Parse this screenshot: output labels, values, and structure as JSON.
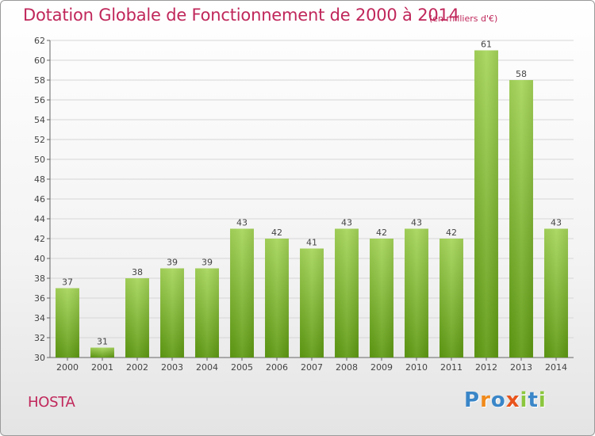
{
  "chart_data": {
    "type": "bar",
    "title": "Dotation Globale de Fonctionnement de 2000 à 2014",
    "unit_label": "(en milliers d'€)",
    "categories": [
      "2000",
      "2001",
      "2002",
      "2003",
      "2004",
      "2005",
      "2006",
      "2007",
      "2008",
      "2009",
      "2010",
      "2011",
      "2012",
      "2013",
      "2014"
    ],
    "values": [
      37,
      31,
      38,
      39,
      39,
      43,
      42,
      41,
      43,
      42,
      43,
      42,
      61,
      58,
      43
    ],
    "ylim": [
      30,
      62
    ],
    "yticks": [
      30,
      32,
      34,
      36,
      38,
      40,
      42,
      44,
      46,
      48,
      50,
      52,
      54,
      56,
      58,
      60,
      62
    ],
    "xlabel": "",
    "ylabel": "",
    "grid": true,
    "colors": {
      "bar_light": "#a6d65a",
      "bar_dark": "#5e9a12",
      "title": "#c0275a",
      "grid": "#d6d6d6"
    }
  },
  "place_name": "HOSTA",
  "logo": {
    "letters": [
      "P",
      "r",
      "o",
      "x",
      "i",
      "t",
      "i"
    ],
    "colors": [
      "#3a86c8",
      "#f08a1c",
      "#3a86c8",
      "#e8541c",
      "#8cc63e",
      "#3a86c8",
      "#8cc63e"
    ]
  }
}
